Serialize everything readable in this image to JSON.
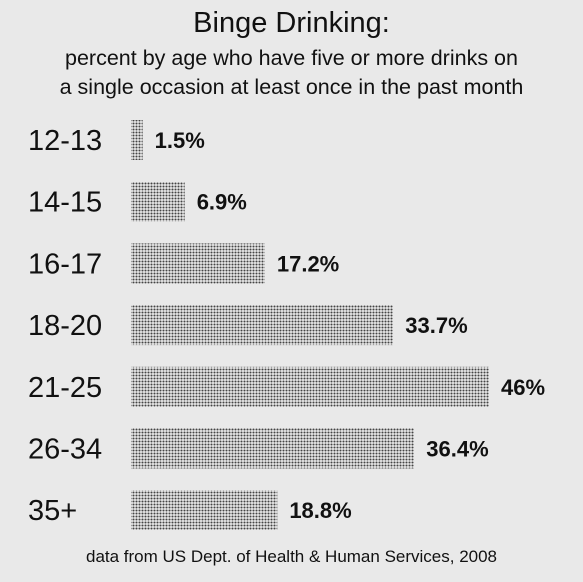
{
  "title": "Binge Drinking:",
  "subtitle_lines": [
    "percent by age who have five or more drinks on",
    "a single occasion at least once in the past month"
  ],
  "source": "data from US Dept. of Health & Human Services, 2008",
  "colors": {
    "background": "#e9e9e9",
    "bar_dot": "#444444",
    "text": "#111111"
  },
  "chart_data": {
    "type": "bar",
    "orientation": "horizontal",
    "title": "Binge Drinking:",
    "subtitle": "percent by age who have five or more drinks on a single occasion at least once in the past month",
    "categories": [
      "12-13",
      "14-15",
      "16-17",
      "18-20",
      "21-25",
      "26-34",
      "35+"
    ],
    "values": [
      1.5,
      6.9,
      17.2,
      33.7,
      46,
      36.4,
      18.8
    ],
    "value_labels": [
      "1.5%",
      "6.9%",
      "17.2%",
      "33.7%",
      "46%",
      "36.4%",
      "18.8%"
    ],
    "xlim": [
      0,
      46
    ],
    "grid": false,
    "legend": "none"
  }
}
